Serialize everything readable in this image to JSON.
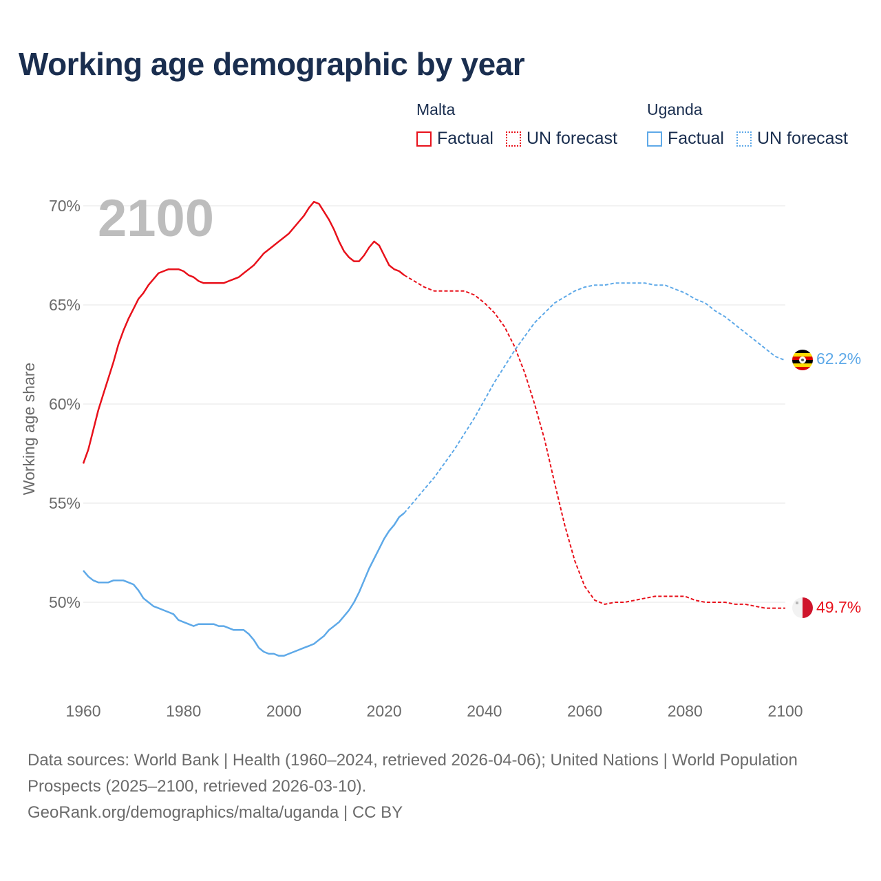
{
  "title": "Working age demographic by year",
  "year_watermark": "2100",
  "legend": {
    "groups": [
      {
        "country": "Malta",
        "color": "#e8111b",
        "factual_label": "Factual",
        "forecast_label": "UN forecast"
      },
      {
        "country": "Uganda",
        "color": "#5ea9e8",
        "factual_label": "Factual",
        "forecast_label": "UN forecast"
      }
    ]
  },
  "footer": {
    "sources": "Data sources: World Bank | Health (1960–2024, retrieved 2026-04-06); United Nations | World Population Prospects (2025–2100, retrieved 2026-03-10).",
    "credit": "GeoRank.org/demographics/malta/uganda | CC BY"
  },
  "chart_data": {
    "type": "line",
    "title": "Working age demographic by year",
    "xlabel": "",
    "ylabel": "Working age share",
    "xlim": [
      1960,
      2100
    ],
    "ylim": [
      46,
      70.5
    ],
    "x_ticks": [
      1960,
      1980,
      2000,
      2020,
      2040,
      2060,
      2080,
      2100
    ],
    "x_tick_labels": [
      "1960",
      "1980",
      "2000",
      "2020",
      "2040",
      "2060",
      "2080",
      "2100"
    ],
    "y_ticks": [
      50,
      55,
      60,
      65,
      70
    ],
    "y_tick_labels": [
      "50%",
      "55%",
      "60%",
      "65%",
      "70%"
    ],
    "grid": "horizontal",
    "series": [
      {
        "name": "Malta",
        "color": "#e8111b",
        "end_label": "49.7%",
        "factual": {
          "x": [
            1960,
            1961,
            1962,
            1963,
            1964,
            1965,
            1966,
            1967,
            1968,
            1969,
            1970,
            1971,
            1972,
            1973,
            1974,
            1975,
            1976,
            1977,
            1978,
            1979,
            1980,
            1981,
            1982,
            1983,
            1984,
            1985,
            1986,
            1987,
            1988,
            1989,
            1990,
            1991,
            1992,
            1993,
            1994,
            1995,
            1996,
            1997,
            1998,
            1999,
            2000,
            2001,
            2002,
            2003,
            2004,
            2005,
            2006,
            2007,
            2008,
            2009,
            2010,
            2011,
            2012,
            2013,
            2014,
            2015,
            2016,
            2017,
            2018,
            2019,
            2020,
            2021,
            2022,
            2023,
            2024
          ],
          "y": [
            57.0,
            57.7,
            58.7,
            59.7,
            60.5,
            61.3,
            62.1,
            63.0,
            63.7,
            64.3,
            64.8,
            65.3,
            65.6,
            66.0,
            66.3,
            66.6,
            66.7,
            66.8,
            66.8,
            66.8,
            66.7,
            66.5,
            66.4,
            66.2,
            66.1,
            66.1,
            66.1,
            66.1,
            66.1,
            66.2,
            66.3,
            66.4,
            66.6,
            66.8,
            67.0,
            67.3,
            67.6,
            67.8,
            68.0,
            68.2,
            68.4,
            68.6,
            68.9,
            69.2,
            69.5,
            69.9,
            70.2,
            70.1,
            69.7,
            69.3,
            68.8,
            68.2,
            67.7,
            67.4,
            67.2,
            67.2,
            67.5,
            67.9,
            68.2,
            68.0,
            67.5,
            67.0,
            66.8,
            66.7,
            66.5
          ]
        },
        "forecast": {
          "x": [
            2024,
            2026,
            2028,
            2030,
            2032,
            2034,
            2036,
            2038,
            2040,
            2042,
            2044,
            2046,
            2048,
            2050,
            2052,
            2054,
            2056,
            2058,
            2060,
            2062,
            2064,
            2066,
            2068,
            2070,
            2072,
            2074,
            2076,
            2078,
            2080,
            2082,
            2084,
            2086,
            2088,
            2090,
            2092,
            2094,
            2096,
            2098,
            2100
          ],
          "y": [
            66.5,
            66.2,
            65.9,
            65.7,
            65.7,
            65.7,
            65.7,
            65.5,
            65.1,
            64.6,
            63.9,
            62.9,
            61.6,
            60.0,
            58.2,
            56.0,
            53.9,
            52.1,
            50.8,
            50.1,
            49.9,
            50.0,
            50.0,
            50.1,
            50.2,
            50.3,
            50.3,
            50.3,
            50.3,
            50.1,
            50.0,
            50.0,
            50.0,
            49.9,
            49.9,
            49.8,
            49.7,
            49.7,
            49.7
          ]
        }
      },
      {
        "name": "Uganda",
        "color": "#5ea9e8",
        "end_label": "62.2%",
        "factual": {
          "x": [
            1960,
            1961,
            1962,
            1963,
            1964,
            1965,
            1966,
            1967,
            1968,
            1969,
            1970,
            1971,
            1972,
            1973,
            1974,
            1975,
            1976,
            1977,
            1978,
            1979,
            1980,
            1981,
            1982,
            1983,
            1984,
            1985,
            1986,
            1987,
            1988,
            1989,
            1990,
            1991,
            1992,
            1993,
            1994,
            1995,
            1996,
            1997,
            1998,
            1999,
            2000,
            2001,
            2002,
            2003,
            2004,
            2005,
            2006,
            2007,
            2008,
            2009,
            2010,
            2011,
            2012,
            2013,
            2014,
            2015,
            2016,
            2017,
            2018,
            2019,
            2020,
            2021,
            2022,
            2023,
            2024
          ],
          "y": [
            51.6,
            51.3,
            51.1,
            51.0,
            51.0,
            51.0,
            51.1,
            51.1,
            51.1,
            51.0,
            50.9,
            50.6,
            50.2,
            50.0,
            49.8,
            49.7,
            49.6,
            49.5,
            49.4,
            49.1,
            49.0,
            48.9,
            48.8,
            48.9,
            48.9,
            48.9,
            48.9,
            48.8,
            48.8,
            48.7,
            48.6,
            48.6,
            48.6,
            48.4,
            48.1,
            47.7,
            47.5,
            47.4,
            47.4,
            47.3,
            47.3,
            47.4,
            47.5,
            47.6,
            47.7,
            47.8,
            47.9,
            48.1,
            48.3,
            48.6,
            48.8,
            49.0,
            49.3,
            49.6,
            50.0,
            50.5,
            51.1,
            51.7,
            52.2,
            52.7,
            53.2,
            53.6,
            53.9,
            54.3,
            54.5
          ]
        },
        "forecast": {
          "x": [
            2024,
            2026,
            2028,
            2030,
            2032,
            2034,
            2036,
            2038,
            2040,
            2042,
            2044,
            2046,
            2048,
            2050,
            2052,
            2054,
            2056,
            2058,
            2060,
            2062,
            2064,
            2066,
            2068,
            2070,
            2072,
            2074,
            2076,
            2078,
            2080,
            2082,
            2084,
            2086,
            2088,
            2090,
            2092,
            2094,
            2096,
            2098,
            2100
          ],
          "y": [
            54.5,
            55.1,
            55.7,
            56.3,
            57.0,
            57.7,
            58.5,
            59.3,
            60.2,
            61.1,
            61.9,
            62.7,
            63.4,
            64.1,
            64.6,
            65.1,
            65.4,
            65.7,
            65.9,
            66.0,
            66.0,
            66.1,
            66.1,
            66.1,
            66.1,
            66.0,
            66.0,
            65.8,
            65.6,
            65.3,
            65.1,
            64.7,
            64.4,
            64.0,
            63.6,
            63.2,
            62.8,
            62.4,
            62.2
          ]
        }
      }
    ]
  }
}
